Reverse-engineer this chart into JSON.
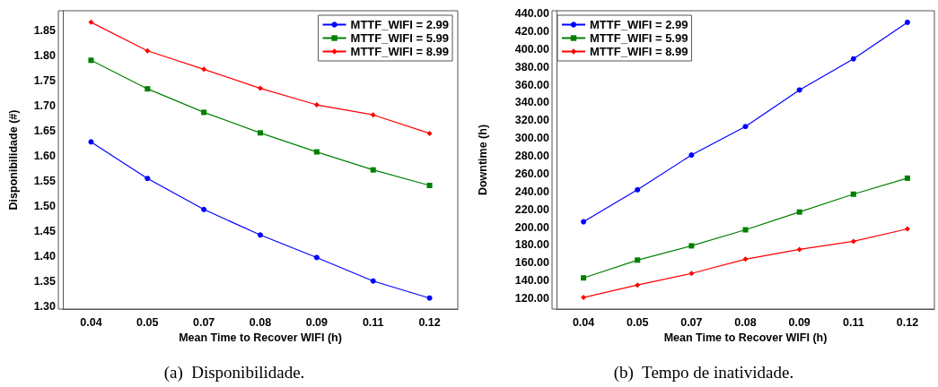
{
  "chart_data": [
    {
      "type": "line",
      "title": "(a)  Disponibilidade.",
      "xlabel": "Mean Time to Recover WIFI (h)",
      "ylabel": "Disponibilidade (#)",
      "categories": [
        "0.04",
        "0.05",
        "0.07",
        "0.08",
        "0.09",
        "0.11",
        "0.12"
      ],
      "series": [
        {
          "name": "MTTF_WIFI = 2.99",
          "color": "#0000ff",
          "marker": "circle",
          "values": [
            1.628,
            1.555,
            1.493,
            1.442,
            1.397,
            1.35,
            1.316
          ]
        },
        {
          "name": "MTTF_WIFI = 5.99",
          "color": "#008000",
          "marker": "square",
          "values": [
            1.791,
            1.734,
            1.687,
            1.646,
            1.608,
            1.572,
            1.541
          ]
        },
        {
          "name": "MTTF_WIFI = 8.99",
          "color": "#ff0000",
          "marker": "diamond",
          "values": [
            1.867,
            1.81,
            1.773,
            1.735,
            1.702,
            1.682,
            1.645
          ]
        }
      ],
      "ylim": [
        1.294,
        1.89
      ],
      "yticks": [
        {
          "value": 1.3,
          "label": "1.30"
        },
        1.35,
        {
          "value": 1.4,
          "label": "1.40"
        },
        1.45,
        {
          "value": 1.5,
          "label": "1.50"
        },
        1.55,
        {
          "value": 1.6,
          "label": "1.60"
        },
        1.65,
        {
          "value": 1.7,
          "label": "1.70"
        },
        1.75,
        {
          "value": 1.8,
          "label": "1.80"
        },
        1.85
      ],
      "grid": false,
      "legend": "top right",
      "line_style": "solid"
    },
    {
      "type": "line",
      "title": "(b)  Tempo de inatividade.",
      "xlabel": "Mean Time to Recover WIFI (h)",
      "ylabel": "Downtime (h)",
      "categories": [
        "0.04",
        "0.05",
        "0.07",
        "0.08",
        "0.09",
        "0.11",
        "0.12"
      ],
      "series": [
        {
          "name": "MTTF_WIFI = 2.99",
          "color": "#0000ff",
          "marker": "circle",
          "values": [
            206,
            242,
            281,
            313,
            354,
            389,
            430
          ]
        },
        {
          "name": "MTTF_WIFI = 5.99",
          "color": "#008000",
          "marker": "square",
          "values": [
            143,
            163,
            179,
            197,
            217,
            237,
            255
          ]
        },
        {
          "name": "MTTF_WIFI = 8.99",
          "color": "#ff0000",
          "marker": "diamond",
          "values": [
            121,
            135,
            148,
            164,
            175,
            184,
            198
          ]
        }
      ],
      "ylim": [
        108,
        443
      ],
      "yticks": [
        {
          "value": 120,
          "label": "120.00"
        },
        {
          "value": 140,
          "label": "140.00"
        },
        {
          "value": 160,
          "label": "160.00"
        },
        {
          "value": 180,
          "label": "180.00"
        },
        {
          "value": 200,
          "label": "200.00"
        },
        {
          "value": 220,
          "label": "220.00"
        },
        {
          "value": 240,
          "label": "240.00"
        },
        {
          "value": 260,
          "label": "260.00"
        },
        {
          "value": 280,
          "label": "280.00"
        },
        {
          "value": 300,
          "label": "300.00"
        },
        {
          "value": 320,
          "label": "320.00"
        },
        {
          "value": 340,
          "label": "340.00"
        },
        {
          "value": 360,
          "label": "360.00"
        },
        {
          "value": 380,
          "label": "380.00"
        },
        {
          "value": 400,
          "label": "400.00"
        },
        {
          "value": 420,
          "label": "420.00"
        },
        {
          "value": 440,
          "label": "440.00"
        }
      ],
      "grid": false,
      "legend": "top left",
      "line_style": "solid"
    }
  ]
}
